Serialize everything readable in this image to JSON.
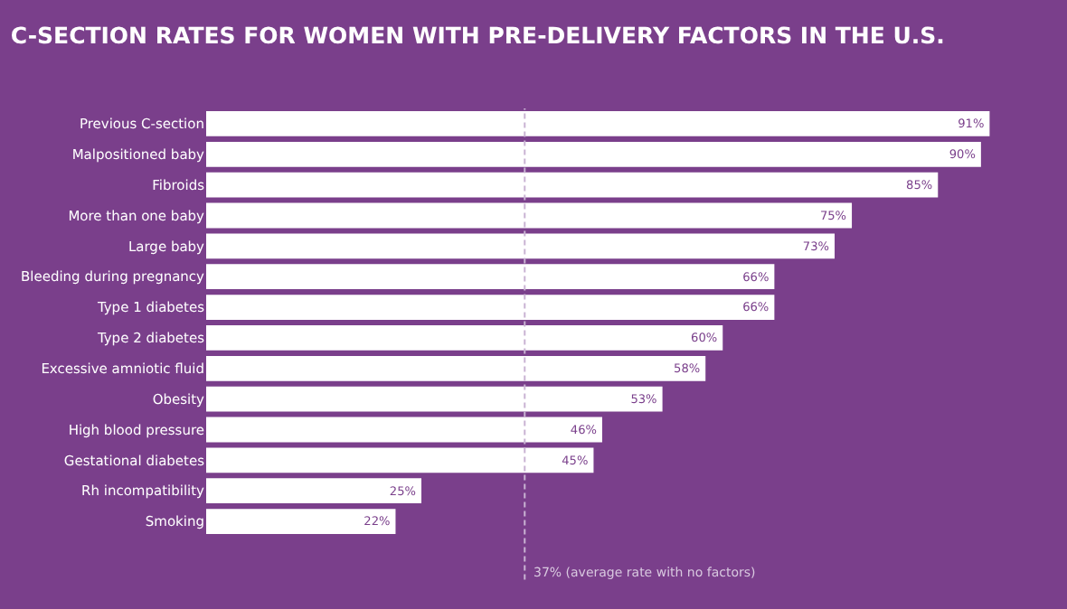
{
  "chart_data": {
    "type": "bar",
    "orientation": "horizontal",
    "title": "C-SECTION RATES FOR WOMEN WITH PRE-DELIVERY FACTORS IN THE U.S.",
    "categories": [
      "Previous C-section",
      "Malpositioned baby",
      "Fibroids",
      "More than one baby",
      "Large baby",
      "Bleeding during pregnancy",
      "Type 1 diabetes",
      "Type 2 diabetes",
      "Excessive amniotic fluid",
      "Obesity",
      "High blood pressure",
      "Gestational diabetes",
      "Rh incompatibility",
      "Smoking"
    ],
    "values": [
      91,
      90,
      85,
      75,
      73,
      66,
      66,
      60,
      58,
      53,
      46,
      45,
      25,
      22
    ],
    "value_labels": [
      "91%",
      "90%",
      "85%",
      "75%",
      "73%",
      "66%",
      "66%",
      "60%",
      "58%",
      "53%",
      "46%",
      "45%",
      "25%",
      "22%"
    ],
    "color": "#ffffff",
    "ref_lines": [
      {
        "axis": "x",
        "value": 37,
        "label": "37% (average rate with no factors)",
        "color": "#c9b3d3",
        "line_style": "dashed"
      }
    ],
    "grid": false,
    "legend": false
  }
}
